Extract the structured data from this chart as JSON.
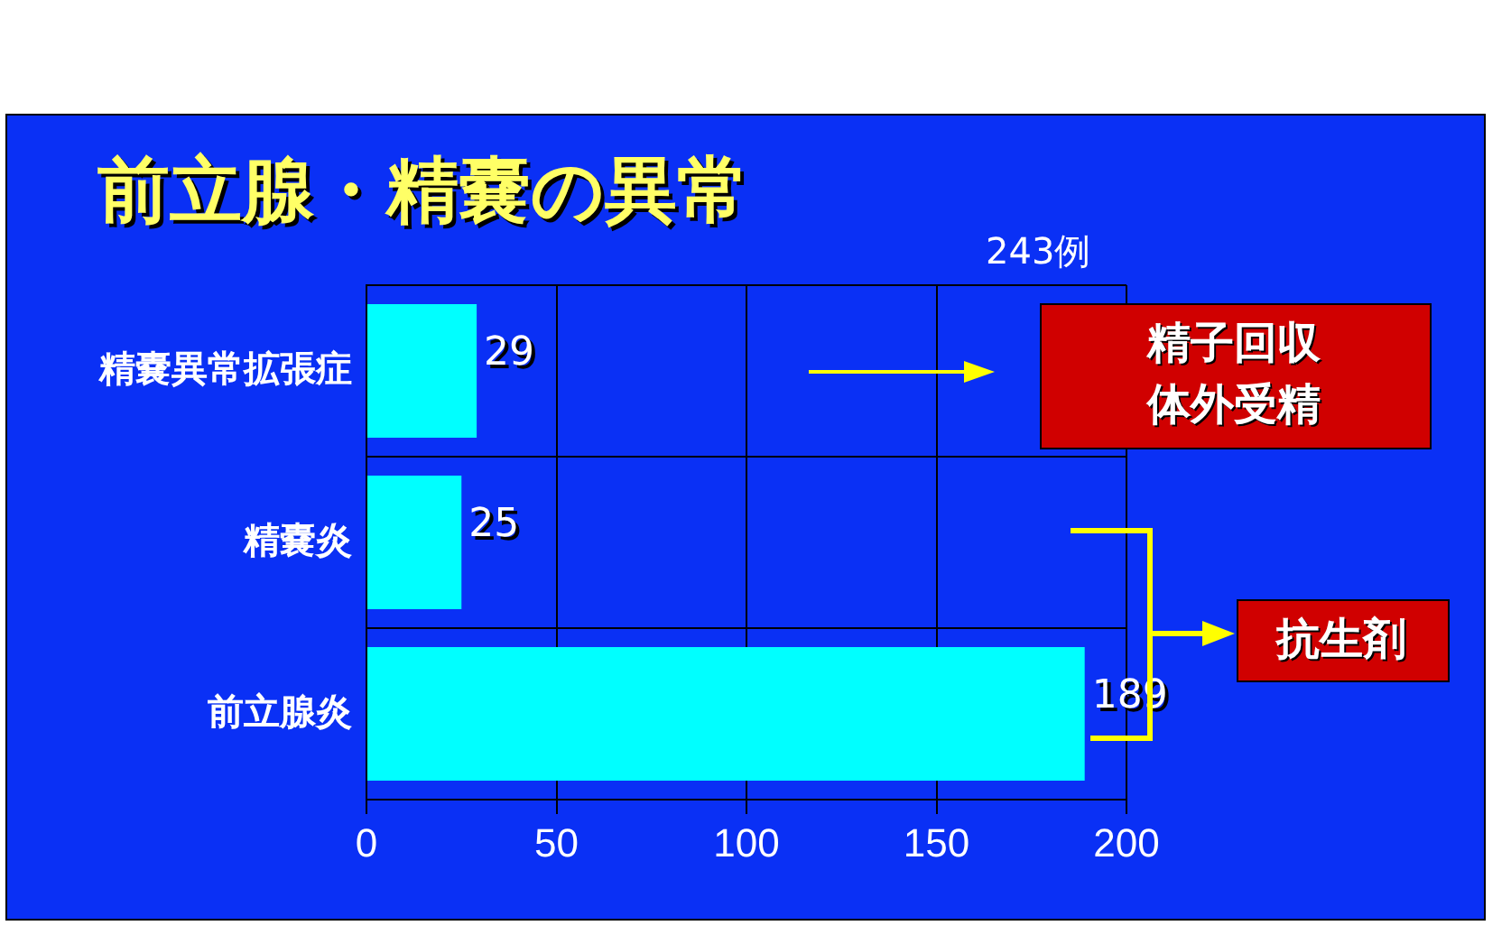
{
  "chart_data": {
    "type": "bar",
    "orientation": "horizontal",
    "title": "前立腺・精嚢の異常",
    "categories": [
      "精嚢異常拡張症",
      "精嚢炎",
      "前立腺炎"
    ],
    "values": [
      29,
      25,
      189
    ],
    "color": "#00ffff",
    "xlim": [
      0,
      200
    ],
    "xticks": [
      0,
      50,
      100,
      150,
      200
    ],
    "grid": true,
    "data_labels": true,
    "annotations": [
      "243例",
      "精子回収",
      "体外受精",
      "抗生剤"
    ]
  }
}
